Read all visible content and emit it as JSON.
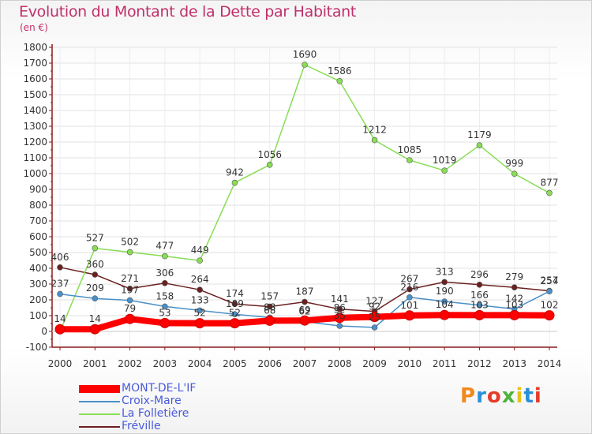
{
  "header": {
    "title": "Evolution du Montant de la Dette par Habitant",
    "subtitle": "(en €)"
  },
  "logo": {
    "text": "Proxiti",
    "colors": [
      "#f08a1c",
      "#2a8fd8",
      "#e63b2a",
      "#4fb33b",
      "#e8c21c",
      "#2a8fd8",
      "#e63b2a"
    ]
  },
  "chart_data": {
    "type": "line",
    "title": "Evolution du Montant de la Dette par Habitant",
    "subtitle": "(en €)",
    "ylim": [
      -100,
      1800
    ],
    "yticks": [
      "-100",
      "0",
      "100",
      "200",
      "300",
      "400",
      "500",
      "600",
      "700",
      "800",
      "900",
      "1000",
      "1100",
      "1200",
      "1300",
      "1400",
      "1500",
      "1600",
      "1700",
      "1800"
    ],
    "x": [
      "2000",
      "2001",
      "2002",
      "2003",
      "2004",
      "2005",
      "2006",
      "2007",
      "2008",
      "2009",
      "2010",
      "2011",
      "2012",
      "2013",
      "2014"
    ],
    "grid": true,
    "legend_position": "bottom-left",
    "series": [
      {
        "name": "MONT-DE-L'IF",
        "color": "#ff0000",
        "values": [
          14,
          14,
          79,
          53,
          52,
          52,
          68,
          69,
          86,
          92,
          101,
          104,
          103,
          103,
          102
        ],
        "labels": [
          "14",
          "14",
          "79",
          "53",
          "52",
          "52",
          "68",
          "69",
          "86",
          "92",
          "101",
          "104",
          "103",
          "103",
          "102"
        ]
      },
      {
        "name": "Croix-Mare",
        "color": "#4a90c8",
        "values": [
          237,
          209,
          197,
          158,
          133,
          109,
          88,
          62,
          35,
          25,
          216,
          190,
          166,
          142,
          254
        ],
        "labels": [
          "237",
          "209",
          "197",
          "158",
          "133",
          "109",
          "88",
          "62",
          "35",
          "25",
          "216",
          "190",
          "166",
          "142",
          "254"
        ]
      },
      {
        "name": "La Folletière",
        "color": "#88dd55",
        "values": [
          0,
          527,
          502,
          477,
          449,
          942,
          1056,
          1690,
          1586,
          1212,
          1085,
          1019,
          1179,
          999,
          877
        ],
        "labels": [
          "",
          "527",
          "502",
          "477",
          "449",
          "942",
          "1056",
          "1690",
          "1586",
          "1212",
          "1085",
          "1019",
          "1179",
          "999",
          "877"
        ]
      },
      {
        "name": "Fréville",
        "color": "#6b2020",
        "values": [
          406,
          360,
          271,
          306,
          264,
          174,
          157,
          187,
          141,
          127,
          267,
          313,
          296,
          279,
          257
        ],
        "labels": [
          "406",
          "360",
          "271",
          "306",
          "264",
          "174",
          "157",
          "187",
          "141",
          "127",
          "267",
          "313",
          "296",
          "279",
          "257"
        ]
      }
    ]
  }
}
